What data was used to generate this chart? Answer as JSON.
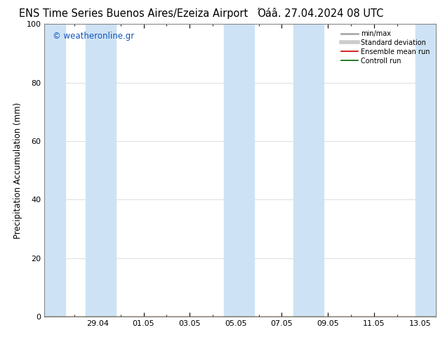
{
  "title_left": "ENS Time Series Buenos Aires/Ezeiza Airport",
  "title_right": "Όáâ. 27.04.2024 08 UTC",
  "ylabel": "Precipitation Accumulation (mm)",
  "watermark": "© weatheronline.gr",
  "ylim": [
    0,
    100
  ],
  "yticks": [
    0,
    20,
    40,
    60,
    80,
    100
  ],
  "x_tick_labels": [
    "29.04",
    "01.05",
    "03.05",
    "05.05",
    "07.05",
    "09.05",
    "11.05",
    "13.05"
  ],
  "x_tick_pos": [
    2,
    4,
    6,
    8,
    10,
    12,
    14,
    16
  ],
  "x_min": -0.3,
  "x_max": 16.7,
  "background_color": "#ffffff",
  "plot_bg_color": "#ffffff",
  "stripe_color": "#cde3f5",
  "stripe_positions": [
    [
      -0.3,
      0.6
    ],
    [
      1.5,
      2.8
    ],
    [
      7.5,
      8.8
    ],
    [
      10.5,
      11.8
    ],
    [
      15.8,
      16.7
    ]
  ],
  "legend_items": [
    {
      "label": "min/max",
      "color": "#aaaaaa",
      "lw": 2
    },
    {
      "label": "Standard deviation",
      "color": "#cccccc",
      "lw": 4
    },
    {
      "label": "Ensemble mean run",
      "color": "#cc0000",
      "lw": 1.2
    },
    {
      "label": "Controll run",
      "color": "#006600",
      "lw": 1.2
    }
  ],
  "title_fontsize": 10.5,
  "axis_label_fontsize": 8.5,
  "tick_fontsize": 8,
  "watermark_color": "#1155bb",
  "watermark_fontsize": 8.5,
  "grid_color": "#dddddd",
  "spine_color": "#888888"
}
